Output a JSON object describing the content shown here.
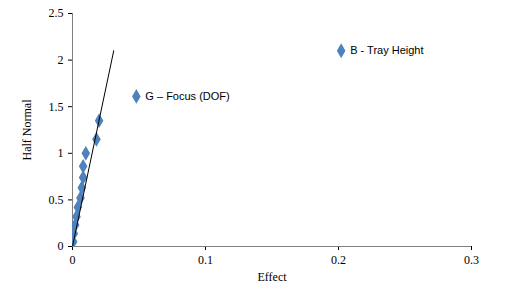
{
  "chart_data": {
    "type": "scatter",
    "xlabel": "Effect",
    "ylabel": "Half Normal",
    "xlim": [
      0,
      0.3
    ],
    "xticks": [
      0,
      0.1,
      0.2,
      0.3
    ],
    "ylim": [
      0,
      2.5
    ],
    "yticks": [
      0,
      0.5,
      1,
      1.5,
      2,
      2.5
    ],
    "grid": false,
    "series": [
      {
        "type": "scatter",
        "color": "#4f81bd",
        "marker": "diamond",
        "x": [
          0.0005,
          0.001,
          0.002,
          0.003,
          0.004,
          0.006,
          0.007,
          0.008,
          0.008,
          0.01,
          0.018,
          0.02,
          0.048,
          0.202
        ],
        "values": [
          0.05,
          0.14,
          0.23,
          0.32,
          0.42,
          0.52,
          0.63,
          0.74,
          0.86,
          1.0,
          1.15,
          1.35,
          1.61,
          2.1
        ]
      },
      {
        "type": "line",
        "color": "#000000",
        "line_style": "solid",
        "x": [
          0,
          0.031
        ],
        "values": [
          0,
          2.1
        ]
      }
    ],
    "annotations": [
      {
        "text": "G – Focus (DOF)",
        "x": 0.048,
        "y": 1.61
      },
      {
        "text": "B - Tray Height",
        "x": 0.202,
        "y": 2.1
      }
    ]
  }
}
